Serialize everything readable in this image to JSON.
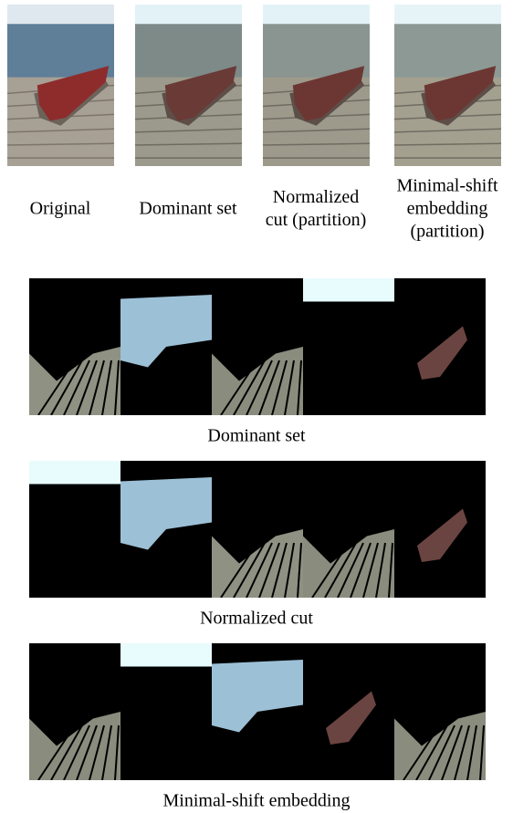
{
  "top_row": {
    "labels": [
      [
        "Original"
      ],
      [
        "Dominant set"
      ],
      [
        "Normalized",
        "cut (partition)"
      ],
      [
        "Minimal-shift",
        "embedding",
        "(partition)"
      ]
    ]
  },
  "segment_rows": [
    {
      "caption": "Dominant set"
    },
    {
      "caption": "Normalized cut"
    },
    {
      "caption": "Minimal-shift embedding"
    }
  ]
}
